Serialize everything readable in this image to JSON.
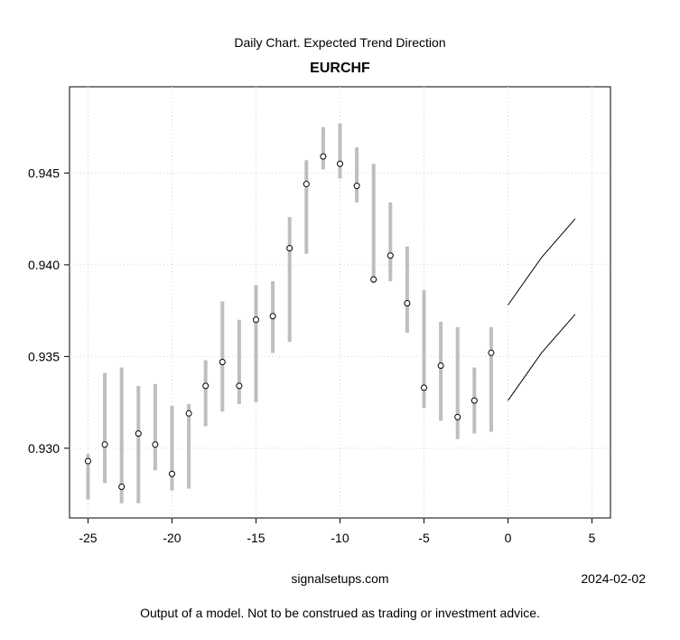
{
  "header": {
    "subtitle": "Daily Chart. Expected Trend Direction",
    "title": "EURCHF"
  },
  "footer": {
    "source": "signalsetups.com",
    "date": "2024-02-02",
    "disclaimer": "Output of a model. Not to be construed as trading or investment advice."
  },
  "chart_data": {
    "type": "scatter",
    "title": "EURCHF",
    "subtitle": "Daily Chart. Expected Trend Direction",
    "xlabel": "",
    "ylabel": "",
    "xlim": [
      -26.1,
      6.1
    ],
    "ylim": [
      0.9262,
      0.9497
    ],
    "grid": true,
    "x_ticks": [
      -25,
      -20,
      -15,
      -10,
      -5,
      0,
      5
    ],
    "y_ticks": [
      0.93,
      0.935,
      0.94,
      0.945
    ],
    "y_tick_labels": [
      "0.930",
      "0.935",
      "0.940",
      "0.945"
    ],
    "colors": {
      "range_bar": "#bebebe",
      "point_fill": "#ffffff",
      "point_stroke": "#000000",
      "forecast_line": "#000000",
      "grid": "#d3d3d3"
    },
    "series": [
      {
        "kind": "daily_range_with_point",
        "x": [
          -25,
          -24,
          -23,
          -22,
          -21,
          -20,
          -19,
          -18,
          -17,
          -16,
          -15,
          -14,
          -13,
          -12,
          -11,
          -10,
          -9,
          -8,
          -7,
          -6,
          -5,
          -4,
          -3,
          -2,
          -1
        ],
        "low": [
          0.9272,
          0.9281,
          0.927,
          0.927,
          0.9288,
          0.9277,
          0.9278,
          0.9312,
          0.932,
          0.9324,
          0.9325,
          0.9352,
          0.9358,
          0.9406,
          0.9452,
          0.9447,
          0.9434,
          0.939,
          0.9391,
          0.9363,
          0.9322,
          0.9315,
          0.9305,
          0.9308,
          0.9309
        ],
        "high": [
          0.9297,
          0.9341,
          0.9344,
          0.9334,
          0.9335,
          0.9323,
          0.9324,
          0.9348,
          0.938,
          0.937,
          0.9389,
          0.9391,
          0.9426,
          0.9457,
          0.9475,
          0.9477,
          0.9464,
          0.9455,
          0.9434,
          0.941,
          0.9386,
          0.9369,
          0.9366,
          0.9344,
          0.9366
        ],
        "value": [
          0.9293,
          0.9302,
          0.9279,
          0.9308,
          0.9302,
          0.9286,
          0.9319,
          0.9334,
          0.9347,
          0.9334,
          0.937,
          0.9372,
          0.9409,
          0.9444,
          0.9459,
          0.9455,
          0.9443,
          0.9392,
          0.9405,
          0.9379,
          0.9333,
          0.9345,
          0.9317,
          0.9326,
          0.9352
        ]
      },
      {
        "kind": "forecast_upper",
        "x": [
          0,
          2,
          4
        ],
        "values": [
          0.9378,
          0.9404,
          0.9425
        ]
      },
      {
        "kind": "forecast_lower",
        "x": [
          0,
          2,
          4
        ],
        "values": [
          0.9326,
          0.9352,
          0.9373
        ]
      }
    ]
  }
}
